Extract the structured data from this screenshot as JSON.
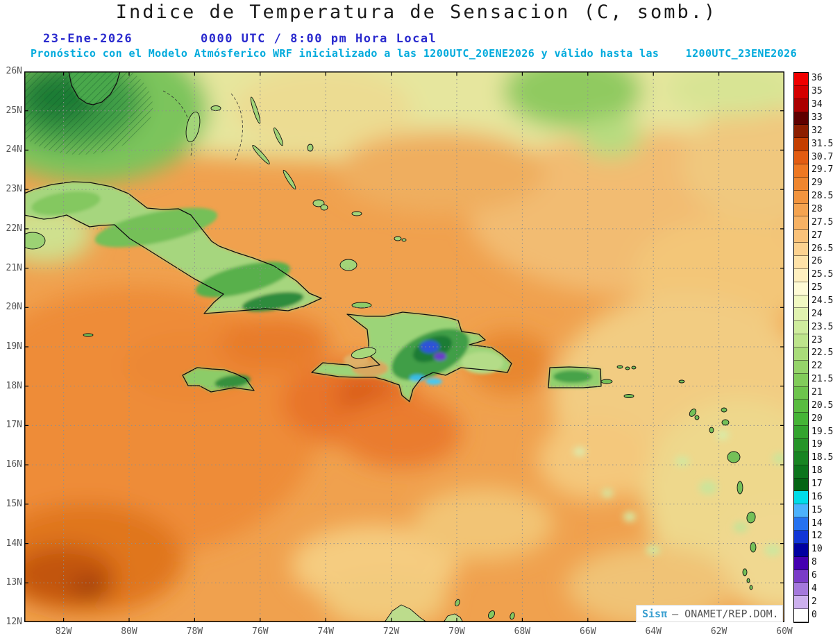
{
  "header": {
    "title": "Indice de Temperatura de Sensacion (C, somb.)",
    "date": "23-Ene-2026",
    "time": "0000 UTC / 8:00 pm Hora Local",
    "forecast_prefix": "Pronóstico con el Modelo Atmósferico WRF inicializado a las 1200UTC_20ENE2026 y válido hasta las",
    "forecast_end": "1200UTC_23ENE2026"
  },
  "map": {
    "lat_labels": [
      "26N",
      "25N",
      "24N",
      "23N",
      "22N",
      "21N",
      "20N",
      "19N",
      "18N",
      "17N",
      "16N",
      "15N",
      "14N",
      "13N",
      "12N"
    ],
    "lon_labels": [
      "82W",
      "80W",
      "78W",
      "76W",
      "74W",
      "72W",
      "70W",
      "68W",
      "66W",
      "64W",
      "62W",
      "60W"
    ],
    "credit_brand": "Sisπ",
    "credit_text": "— ONAMET/REP.DOM."
  },
  "colorbar": {
    "title": "",
    "labels": [
      "36",
      "35",
      "34",
      "33",
      "32",
      "31.5",
      "30.7",
      "29.7",
      "29",
      "28.5",
      "28",
      "27.5",
      "27",
      "26.5",
      "26",
      "25.5",
      "25",
      "24.5",
      "24",
      "23.5",
      "23",
      "22.5",
      "22",
      "21.5",
      "21",
      "20.5",
      "20",
      "19.5",
      "19",
      "18.5",
      "18",
      "17",
      "16",
      "15",
      "14",
      "12",
      "10",
      "8",
      "6",
      "4",
      "2",
      "0"
    ],
    "colors": [
      "#f00000",
      "#d40000",
      "#aa0000",
      "#5e0000",
      "#8c1e00",
      "#c43e00",
      "#e25c12",
      "#ee7822",
      "#f0862e",
      "#f2943e",
      "#f4a350",
      "#f7b264",
      "#fac27a",
      "#fcd290",
      "#fee2a8",
      "#fff0c0",
      "#fffbd6",
      "#f1f8c2",
      "#e1f2b0",
      "#cfec9e",
      "#bde48c",
      "#a9dc7a",
      "#95d46a",
      "#81cc5a",
      "#6dc44c",
      "#59bc40",
      "#45b436",
      "#33a42e",
      "#259428",
      "#178422",
      "#0b741c",
      "#036414",
      "#00dce8",
      "#4cb2fc",
      "#2572f0",
      "#1136d6",
      "#0000a0",
      "#4400b0",
      "#7a3cc8",
      "#a478dc",
      "#ccb0ee",
      "#ffffff"
    ]
  },
  "colors": {
    "header_blue": "#2a2ace",
    "forecast_cyan": "#00aadc",
    "credit_blue": "#3a9fd0"
  }
}
